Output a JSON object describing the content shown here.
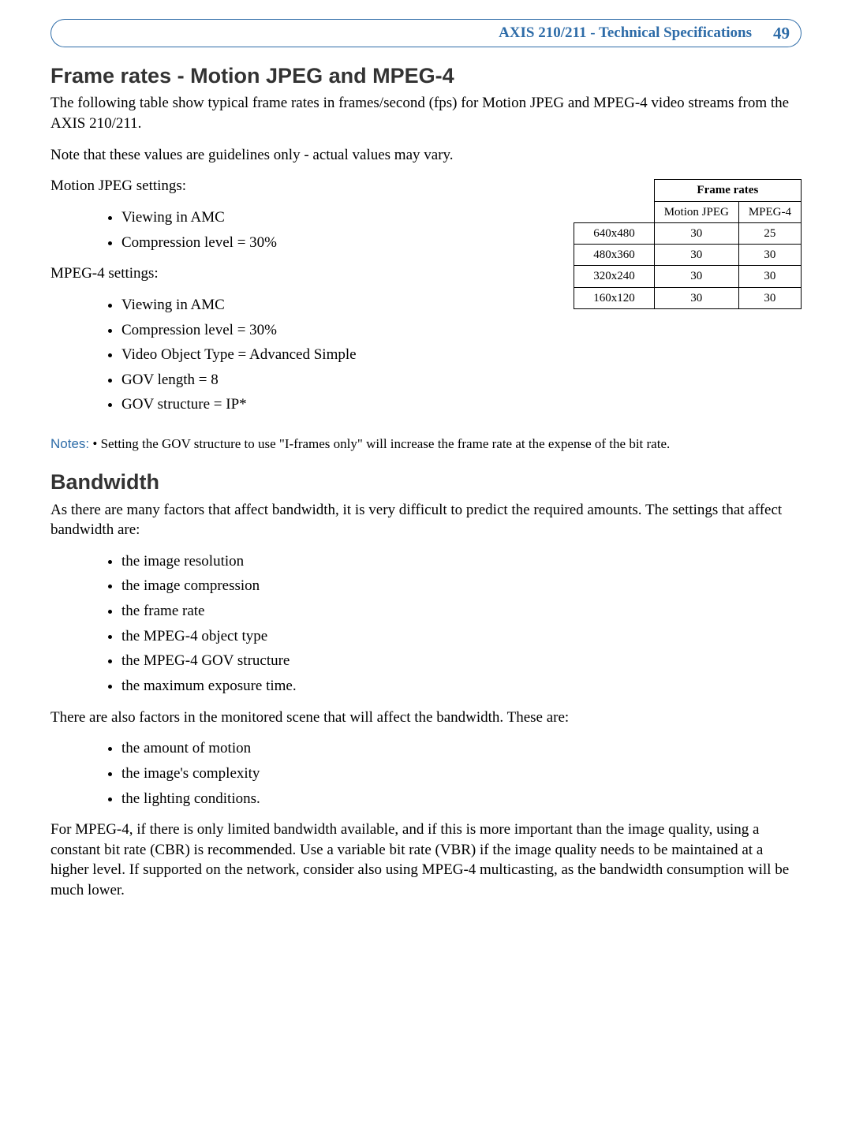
{
  "header": {
    "title": "AXIS 210/211 - Technical Specifications",
    "page_number": "49"
  },
  "section1": {
    "heading": "Frame rates - Motion JPEG and MPEG-4",
    "intro": "The following table show typical frame rates in frames/second (fps) for Motion JPEG and MPEG-4 video streams from the AXIS 210/211.",
    "note_line": "Note that these values are guidelines only - actual values may vary.",
    "mjpeg_label": "Motion JPEG settings:",
    "mjpeg_items": [
      "Viewing in AMC",
      "Compression level = 30%"
    ],
    "mpeg4_label": "MPEG-4 settings:",
    "mpeg4_items": [
      "Viewing in AMC",
      "Compression level = 30%",
      "Video Object Type = Advanced Simple",
      "GOV length = 8",
      "GOV structure = IP*"
    ],
    "notes_prefix": "Notes:",
    "notes_text": "• Setting the GOV structure to use \"I-frames only\" will increase the frame rate at the expense of the bit rate."
  },
  "frame_table": {
    "header_span": "Frame rates",
    "col1": "Motion JPEG",
    "col2": "MPEG-4",
    "rows": [
      {
        "res": "640x480",
        "mj": "30",
        "mp": "25"
      },
      {
        "res": "480x360",
        "mj": "30",
        "mp": "30"
      },
      {
        "res": "320x240",
        "mj": "30",
        "mp": "30"
      },
      {
        "res": "160x120",
        "mj": "30",
        "mp": "30"
      }
    ]
  },
  "section2": {
    "heading": "Bandwidth",
    "intro": "As there are many factors that affect bandwidth, it is very difficult to predict the required amounts. The settings that affect bandwidth are:",
    "factors1": [
      "the image resolution",
      "the image compression",
      "the frame rate",
      "the MPEG-4 object type",
      "the MPEG-4 GOV structure",
      "the maximum exposure time."
    ],
    "p2": "There are also factors in the monitored scene that will affect the bandwidth. These are:",
    "factors2": [
      "the amount of motion",
      "the image's complexity",
      "the lighting conditions."
    ],
    "p3": "For MPEG-4, if there is only limited bandwidth available, and if this is more important than the image quality, using a constant bit rate (CBR) is recommended. Use a variable bit rate (VBR) if the image quality needs to be maintained at a higher level. If supported on the network, consider also using MPEG-4 multicasting, as the bandwidth consumption will be much lower."
  }
}
